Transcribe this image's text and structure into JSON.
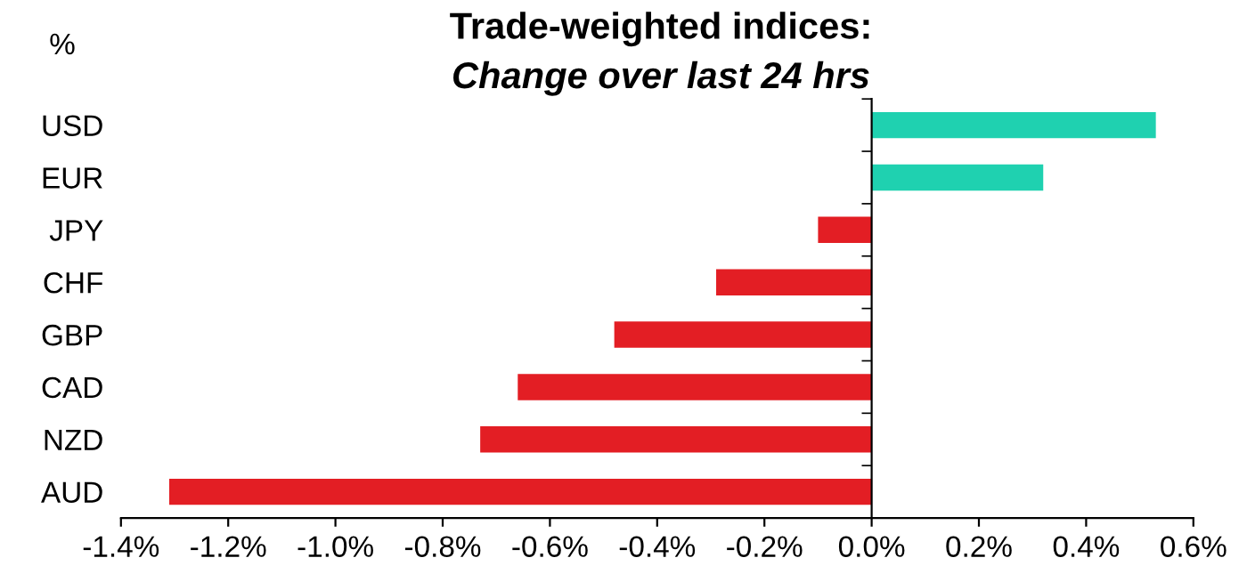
{
  "chart_data": {
    "type": "bar",
    "orientation": "horizontal",
    "title": "Trade-weighted indices:",
    "subtitle": "Change over last 24 hrs",
    "ylabel": "%",
    "categories": [
      "USD",
      "EUR",
      "JPY",
      "CHF",
      "GBP",
      "CAD",
      "NZD",
      "AUD"
    ],
    "values": [
      0.53,
      0.32,
      -0.1,
      -0.29,
      -0.48,
      -0.66,
      -0.73,
      -1.31
    ],
    "colors": [
      "#1fd1b0",
      "#1fd1b0",
      "#e31e24",
      "#e31e24",
      "#e31e24",
      "#e31e24",
      "#e31e24",
      "#e31e24"
    ],
    "xlim": [
      -1.4,
      0.6
    ],
    "xticks": [
      {
        "value": -1.4,
        "label": "-1.4%"
      },
      {
        "value": -1.2,
        "label": "-1.2%"
      },
      {
        "value": -1.0,
        "label": "-1.0%"
      },
      {
        "value": -0.8,
        "label": "-0.8%"
      },
      {
        "value": -0.6,
        "label": "-0.6%"
      },
      {
        "value": -0.4,
        "label": "-0.4%"
      },
      {
        "value": -0.2,
        "label": "-0.2%"
      },
      {
        "value": 0,
        "label": "0.0%"
      },
      {
        "value": 0.2,
        "label": "0.2%"
      },
      {
        "value": 0.4,
        "label": "0.4%"
      },
      {
        "value": 0.6,
        "label": "0.6%"
      }
    ],
    "legend": false
  }
}
